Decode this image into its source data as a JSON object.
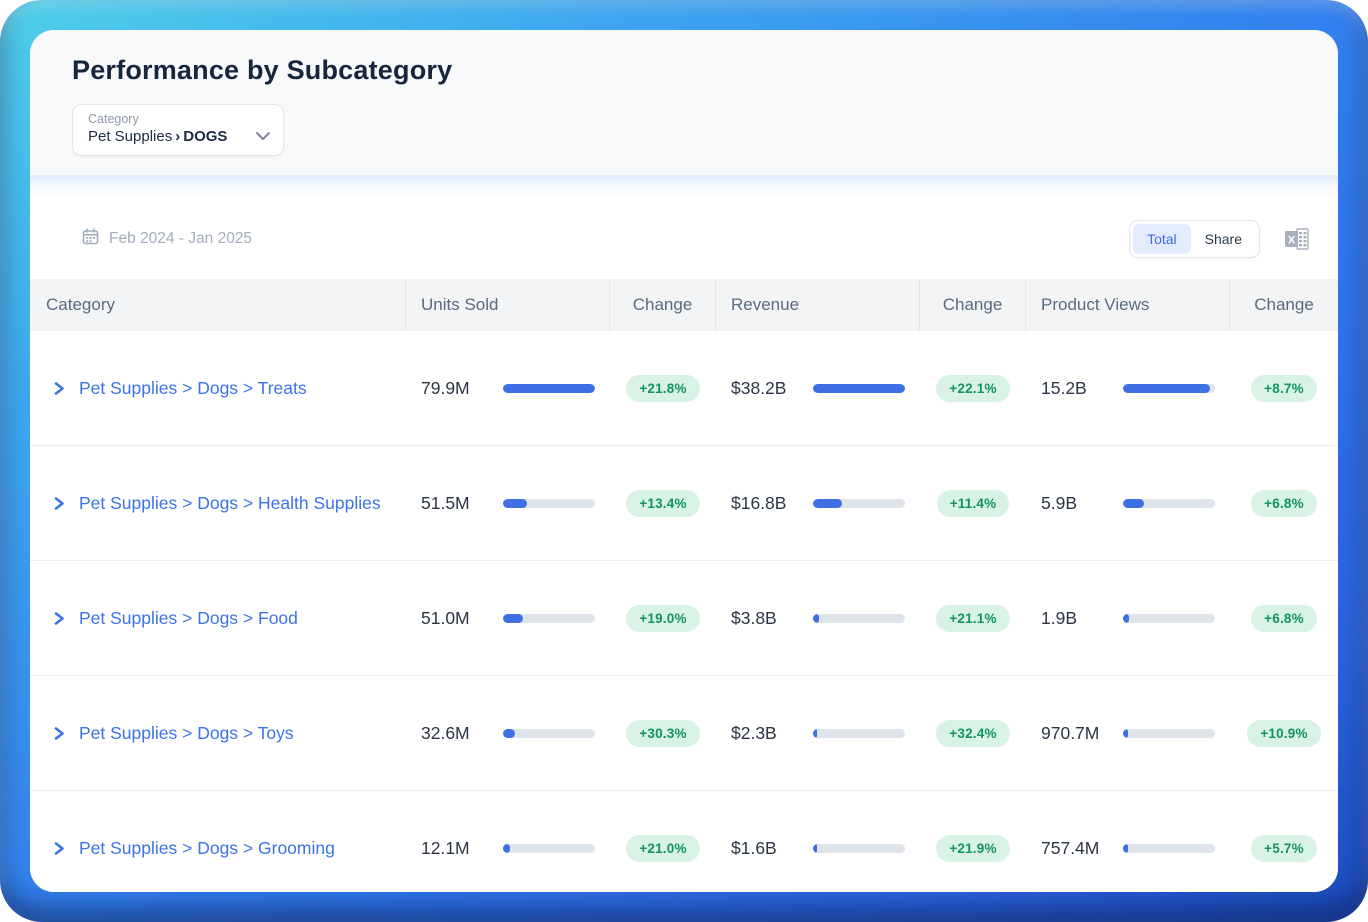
{
  "page": {
    "title": "Performance by Subcategory"
  },
  "category_selector": {
    "label": "Category",
    "value_prefix": "Pet Supplies",
    "separator": "›",
    "value_selected": "DOGS"
  },
  "toolbar": {
    "date_range": "Feb 2024 - Jan 2025",
    "toggle_total": "Total",
    "toggle_share": "Share",
    "toggle_selected": "Total"
  },
  "table": {
    "headers": [
      "Category",
      "Units Sold",
      "Change",
      "Revenue",
      "Change",
      "Product Views",
      "Change"
    ],
    "rows": [
      {
        "category": "Pet Supplies > Dogs > Treats",
        "units_sold": "79.9M",
        "units_bar_pct": 100,
        "units_change": "+21.8%",
        "revenue": "$38.2B",
        "revenue_bar_pct": 100,
        "revenue_change": "+22.1%",
        "product_views": "15.2B",
        "views_bar_pct": 95,
        "views_change": "+8.7%"
      },
      {
        "category": "Pet Supplies > Dogs > Health Supplies",
        "units_sold": "51.5M",
        "units_bar_pct": 26,
        "units_change": "+13.4%",
        "revenue": "$16.8B",
        "revenue_bar_pct": 32,
        "revenue_change": "+11.4%",
        "product_views": "5.9B",
        "views_bar_pct": 23,
        "views_change": "+6.8%"
      },
      {
        "category": "Pet Supplies > Dogs > Food",
        "units_sold": "51.0M",
        "units_bar_pct": 22,
        "units_change": "+19.0%",
        "revenue": "$3.8B",
        "revenue_bar_pct": 6,
        "revenue_change": "+21.1%",
        "product_views": "1.9B",
        "views_bar_pct": 7,
        "views_change": "+6.8%"
      },
      {
        "category": "Pet Supplies > Dogs > Toys",
        "units_sold": "32.6M",
        "units_bar_pct": 13,
        "units_change": "+30.3%",
        "revenue": "$2.3B",
        "revenue_bar_pct": 4,
        "revenue_change": "+32.4%",
        "product_views": "970.7M",
        "views_bar_pct": 5,
        "views_change": "+10.9%"
      },
      {
        "category": "Pet Supplies > Dogs > Grooming",
        "units_sold": "12.1M",
        "units_bar_pct": 8,
        "units_change": "+21.0%",
        "revenue": "$1.6B",
        "revenue_bar_pct": 4,
        "revenue_change": "+21.9%",
        "product_views": "757.4M",
        "views_bar_pct": 5,
        "views_change": "+5.7%"
      }
    ]
  },
  "colors": {
    "accent_blue": "#3e6fe3",
    "link_blue": "#3b73e8",
    "positive_text": "#12945f",
    "positive_bg": "#d9f2e6",
    "bar_track": "#dfe3ea",
    "frame_gradient_start": "#4fd0e9",
    "frame_gradient_end": "#1c4cbd"
  }
}
